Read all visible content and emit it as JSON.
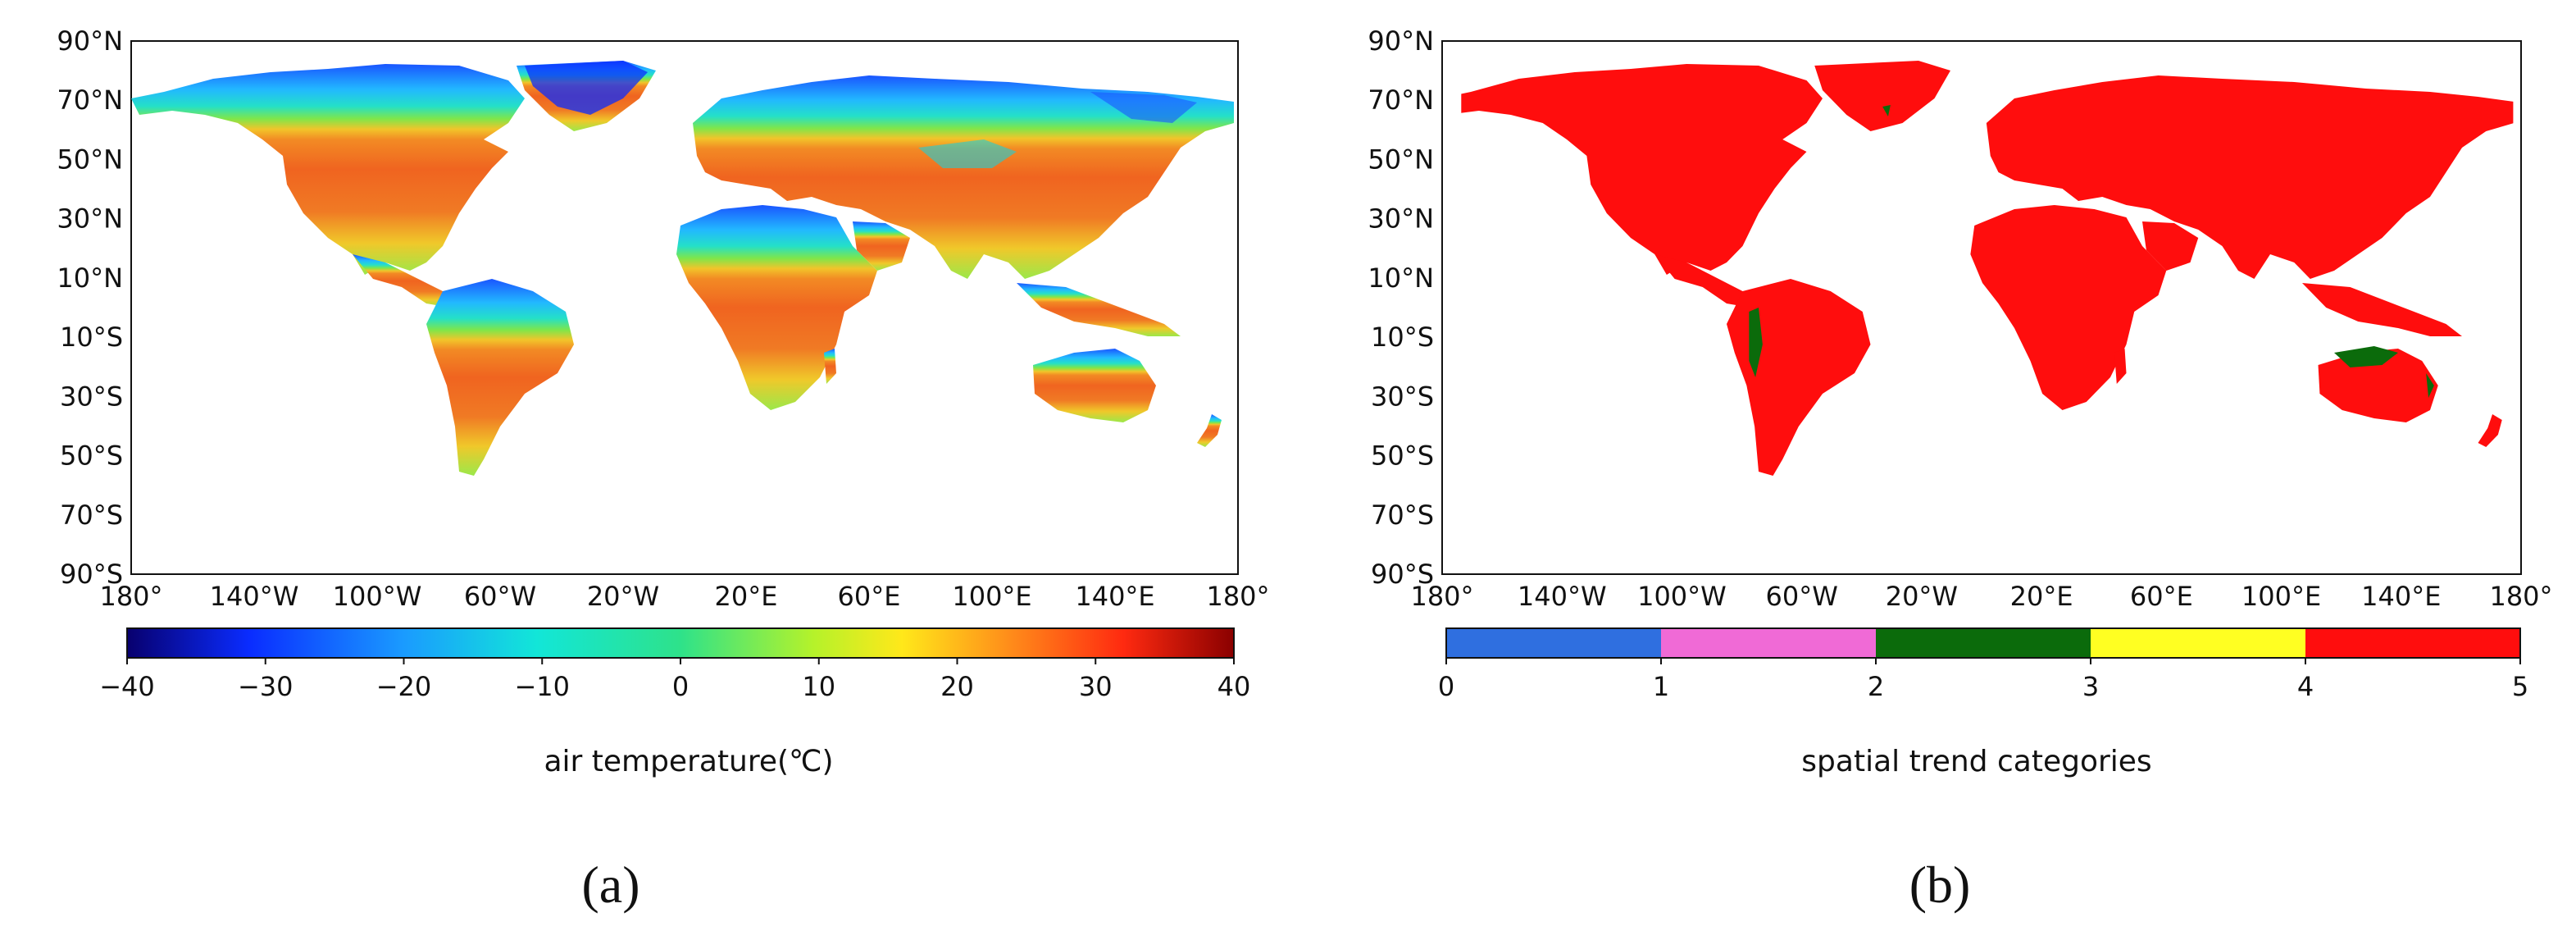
{
  "panels": [
    {
      "id": "a",
      "letter": "(a)",
      "colorbar": {
        "label": "air temperature(℃)",
        "ticks": [
          "−40",
          "−30",
          "−20",
          "−10",
          "0",
          "10",
          "20",
          "30",
          "40"
        ],
        "min": -40,
        "max": 40,
        "type": "continuous",
        "stops": [
          "#08006e",
          "#0a2cff",
          "#1a9bff",
          "#12e6d8",
          "#2ee28a",
          "#b5f22a",
          "#ffe81a",
          "#ff8a1a",
          "#ff2a10",
          "#8a0000"
        ]
      },
      "lat_ticks": [
        "90°N",
        "70°N",
        "50°N",
        "30°N",
        "10°N",
        "10°S",
        "30°S",
        "50°S",
        "70°S",
        "90°S"
      ],
      "lon_ticks": [
        "180°",
        "140°W",
        "100°W",
        "60°W",
        "20°W",
        "20°E",
        "60°E",
        "100°E",
        "140°E",
        "180°"
      ]
    },
    {
      "id": "b",
      "letter": "(b)",
      "colorbar": {
        "label": "spatial trend categories",
        "ticks": [
          "0",
          "1",
          "2",
          "3",
          "4",
          "5"
        ],
        "min": 0,
        "max": 5,
        "type": "discrete",
        "category_colors": [
          "#2f6fe0",
          "#f06ad6",
          "#0b6b0b",
          "#ffff22",
          "#ff0d0d"
        ]
      },
      "lat_ticks": [
        "90°N",
        "70°N",
        "50°N",
        "30°N",
        "10°N",
        "10°S",
        "30°S",
        "50°S",
        "70°S",
        "90°S"
      ],
      "lon_ticks": [
        "180°",
        "140°W",
        "100°W",
        "60°W",
        "20°W",
        "20°E",
        "60°E",
        "100°E",
        "140°E",
        "180°"
      ]
    }
  ]
}
